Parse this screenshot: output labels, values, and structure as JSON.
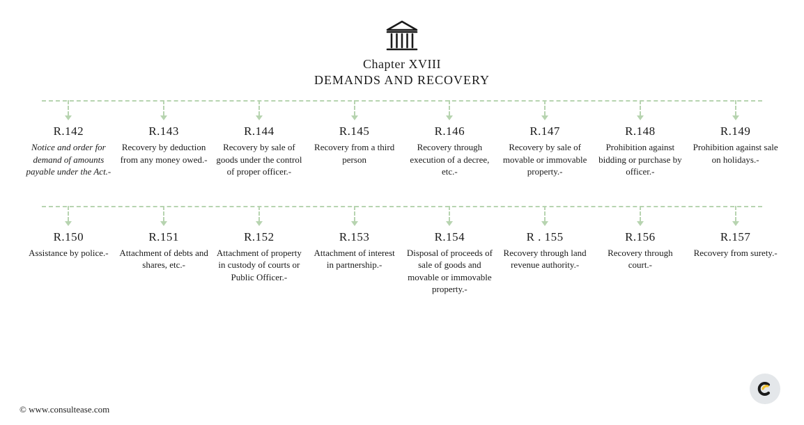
{
  "header": {
    "chapter": "Chapter XVIII",
    "title": "DEMANDS AND RECOVERY"
  },
  "colors": {
    "dash": "#b7d4b0",
    "text": "#1a1a1a",
    "background": "#ffffff",
    "badge_bg": "#e4e7ea",
    "logo_yellow": "#f4c430",
    "logo_dark": "#1a1a1a"
  },
  "row1": [
    {
      "num": "R.142",
      "desc": "Notice and order for demand of amounts payable under the Act.-",
      "italic": true
    },
    {
      "num": "R.143",
      "desc": "Recovery by deduction from any money owed.-"
    },
    {
      "num": "R.144",
      "desc": "Recovery by sale of goods under the control of proper officer.-"
    },
    {
      "num": "R.145",
      "desc": "Recovery from a third person"
    },
    {
      "num": "R.146",
      "desc": "Recovery through execution of a decree, etc.-"
    },
    {
      "num": "R.147",
      "desc": "Recovery by sale of movable or immovable property.-"
    },
    {
      "num": "R.148",
      "desc": "Prohibition against bidding or purchase by officer.-"
    },
    {
      "num": "R.149",
      "desc": "Prohibition against sale on holidays.-"
    }
  ],
  "row2": [
    {
      "num": "R.150",
      "desc": "Assistance by police.-"
    },
    {
      "num": "R.151",
      "desc": "Attachment of debts and shares, etc.-"
    },
    {
      "num": "R.152",
      "desc": "Attachment of property in custody of courts or Public Officer.-"
    },
    {
      "num": "R.153",
      "desc": "Attachment of interest in partnership.-"
    },
    {
      "num": "R.154",
      "desc": "Disposal of proceeds of sale of goods and movable or immovable property.-"
    },
    {
      "num": "R . 155",
      "desc": "Recovery through land revenue authority.-"
    },
    {
      "num": "R.156",
      "desc": "Recovery through court.-"
    },
    {
      "num": "R.157",
      "desc": "Recovery from surety.-"
    }
  ],
  "footer": "© www.consultease.com"
}
